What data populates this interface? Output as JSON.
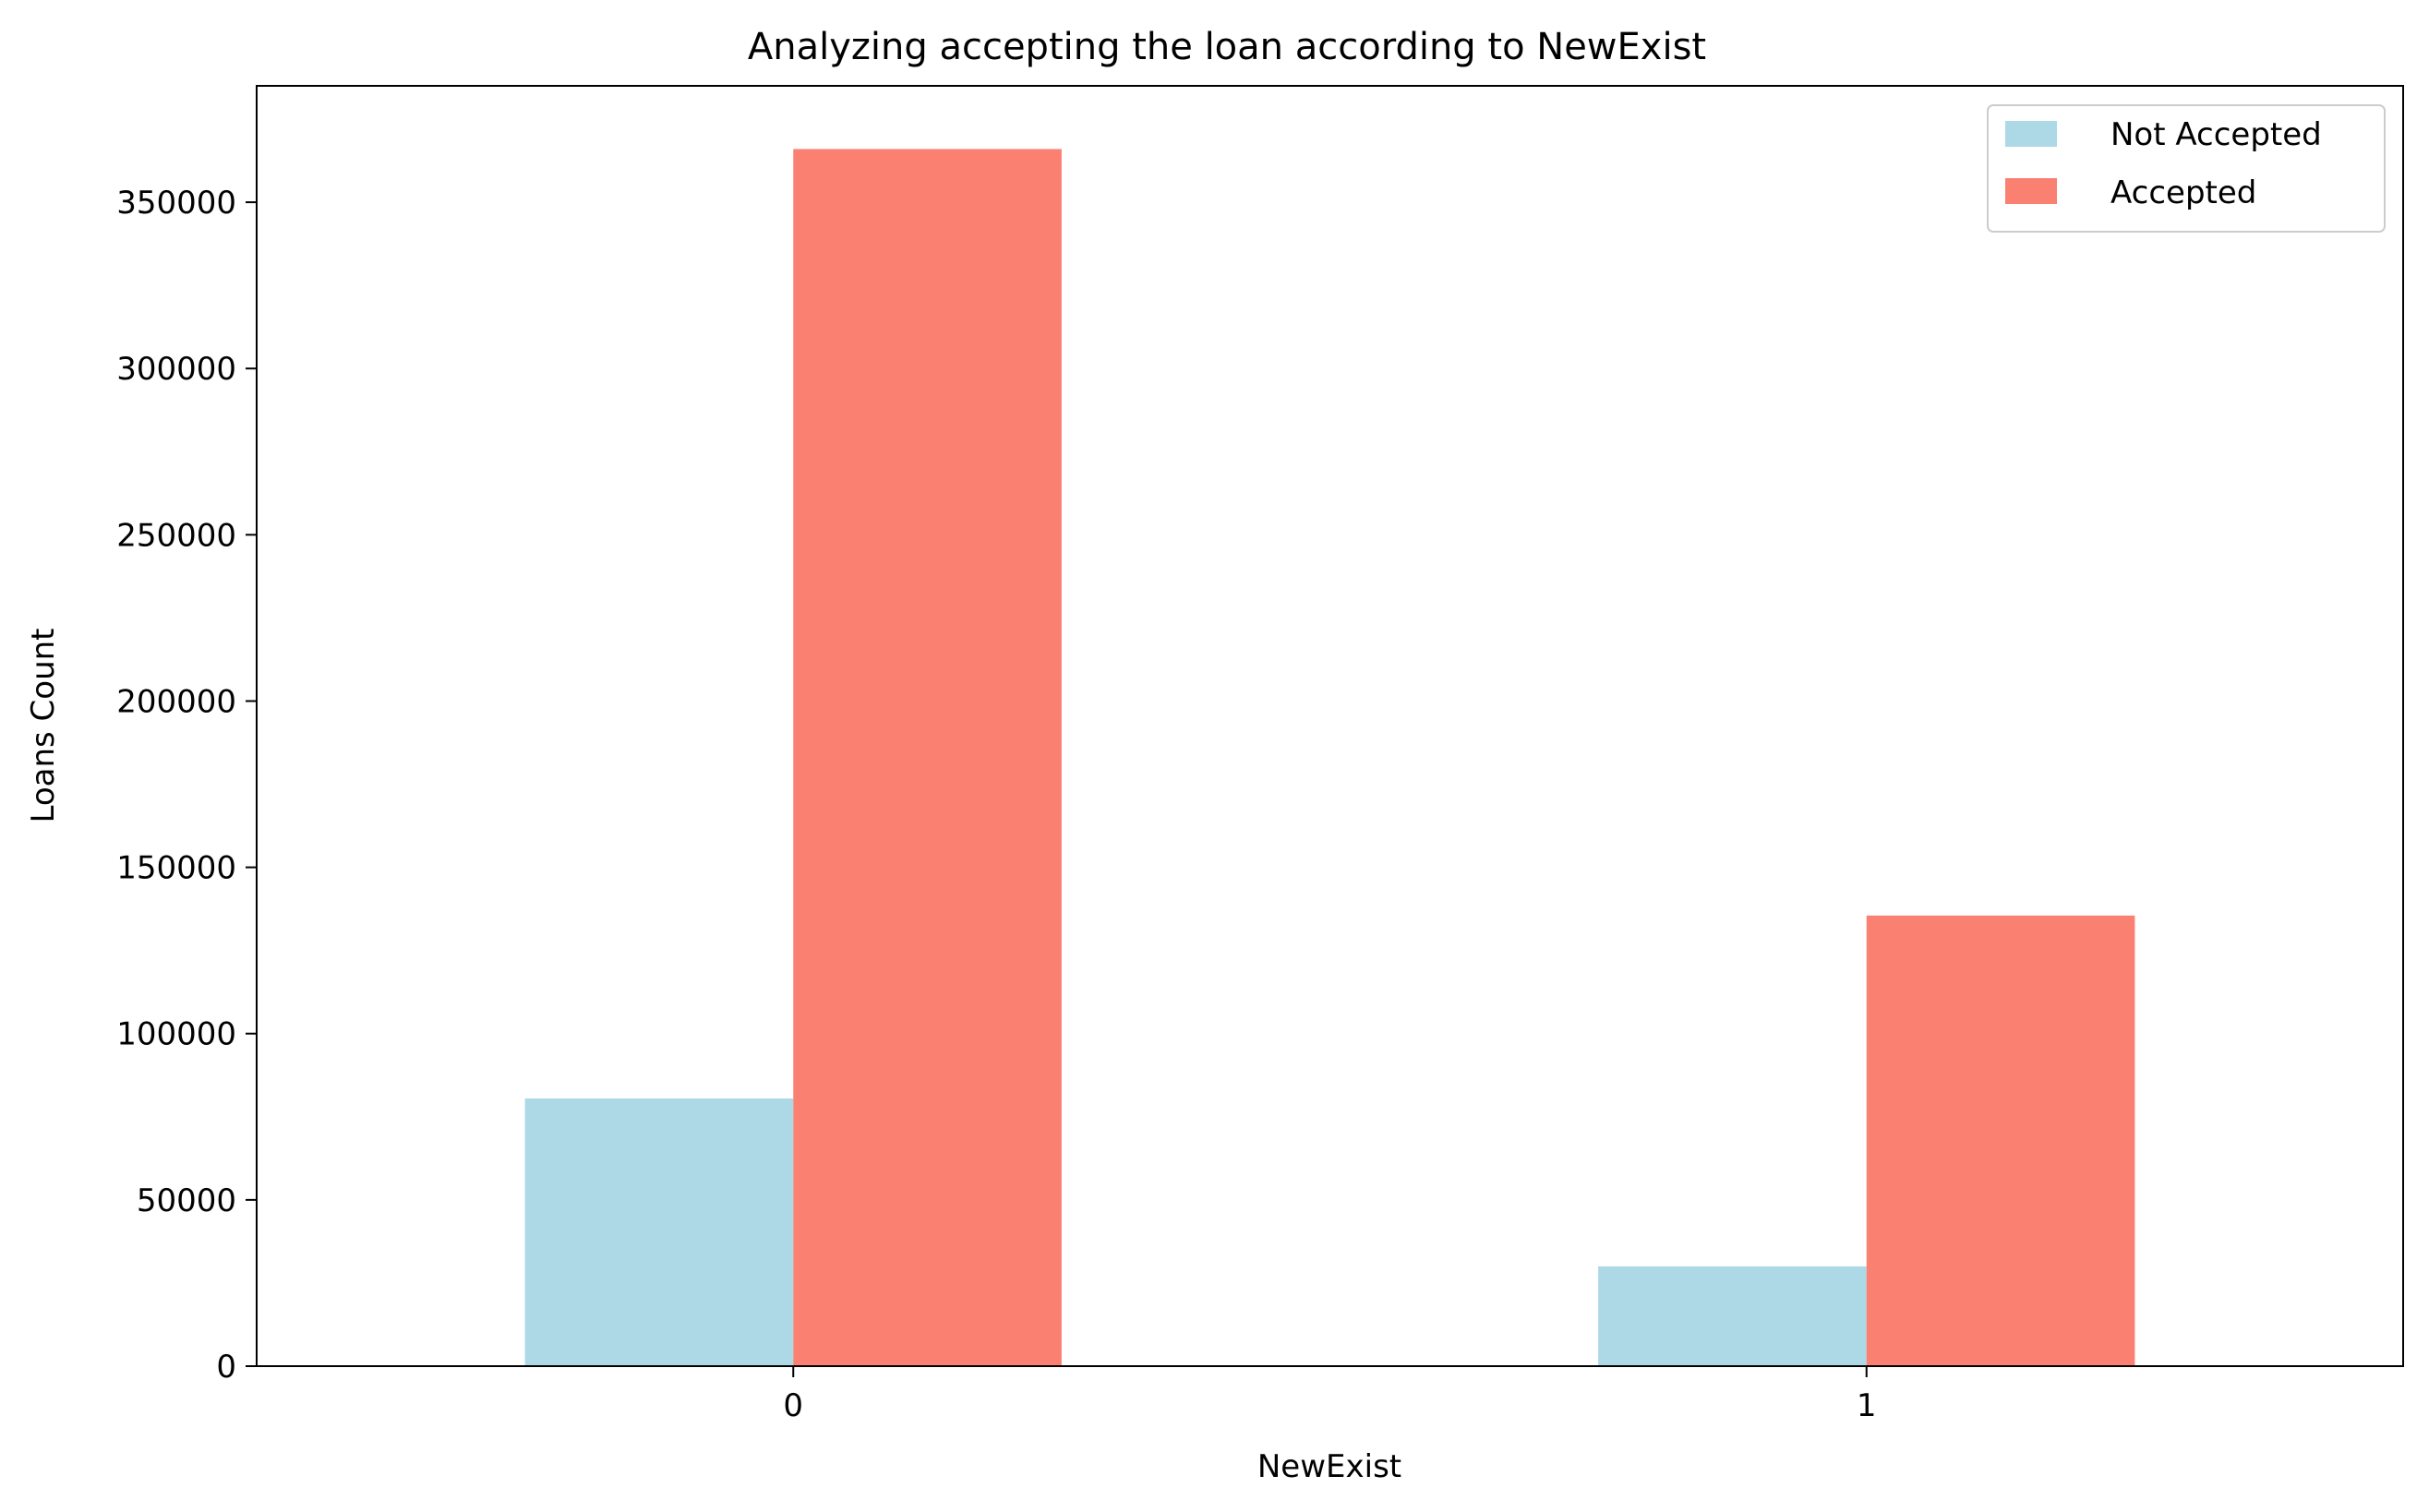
{
  "chart_data": {
    "type": "bar",
    "title": "Analyzing accepting the loan according to NewExist",
    "xlabel": "NewExist",
    "ylabel": "Loans Count",
    "categories": [
      "0",
      "1"
    ],
    "series": [
      {
        "name": "Not Accepted",
        "values": [
          80500,
          30000
        ],
        "color": "#add8e6"
      },
      {
        "name": "Accepted",
        "values": [
          366000,
          135500
        ],
        "color": "#fa8072"
      }
    ],
    "ylim": [
      0,
      385000
    ],
    "yticks": [
      0,
      50000,
      100000,
      150000,
      200000,
      250000,
      300000,
      350000
    ],
    "grid": false,
    "legend_position": "top-right"
  }
}
